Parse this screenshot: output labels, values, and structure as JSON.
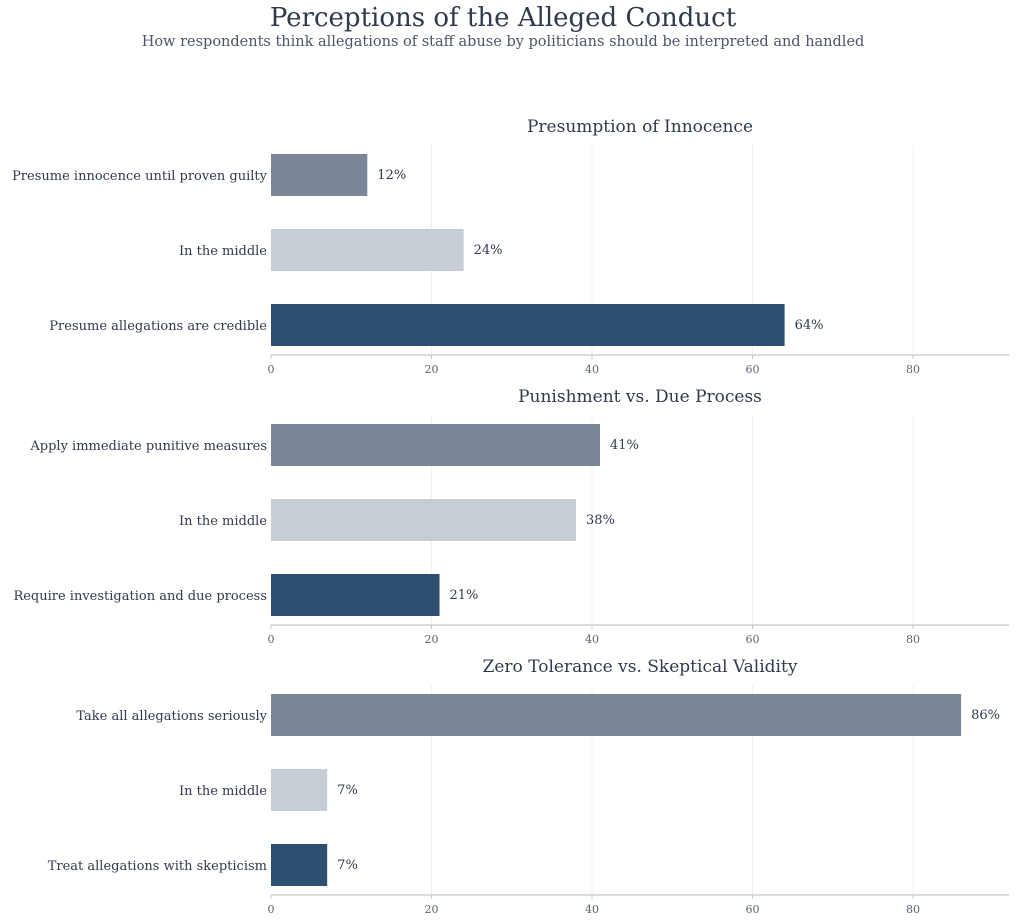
{
  "title": "Perceptions of the Alleged Conduct",
  "subtitle": "How respondents think allegations of staff abuse by politicians should be interpreted and handled",
  "colors": {
    "bar_top": "#7b8798",
    "bar_middle": "#c6cdd5",
    "bar_bottom": "#2e5070",
    "text": "#2f3a4d",
    "tick_text": "#5a6472",
    "axis": "#c4c8d0",
    "grid": "#eef0f3"
  },
  "chart_data": [
    {
      "type": "bar",
      "orientation": "horizontal",
      "title": "Presumption of Innocence",
      "categories": [
        "Presume innocence until proven guilty",
        "In the middle",
        "Presume allegations are credible"
      ],
      "values": [
        12,
        24,
        64
      ],
      "value_labels": [
        "12%",
        "24%",
        "64%"
      ],
      "xlim": [
        0,
        92
      ],
      "xticks": [
        0,
        20,
        40,
        60,
        80
      ],
      "xtick_labels": [
        "0",
        "20",
        "40",
        "60",
        "80"
      ],
      "grid": true
    },
    {
      "type": "bar",
      "orientation": "horizontal",
      "title": "Punishment vs. Due Process",
      "categories": [
        "Apply immediate punitive measures",
        "In the middle",
        "Require investigation and due process"
      ],
      "values": [
        41,
        38,
        21
      ],
      "value_labels": [
        "41%",
        "38%",
        "21%"
      ],
      "xlim": [
        0,
        92
      ],
      "xticks": [
        0,
        20,
        40,
        60,
        80
      ],
      "xtick_labels": [
        "0",
        "20",
        "40",
        "60",
        "80"
      ],
      "grid": true
    },
    {
      "type": "bar",
      "orientation": "horizontal",
      "title": "Zero Tolerance vs. Skeptical Validity",
      "categories": [
        "Take all allegations seriously",
        "In the middle",
        "Treat allegations with skepticism"
      ],
      "values": [
        86,
        7,
        7
      ],
      "value_labels": [
        "86%",
        "7%",
        "7%"
      ],
      "xlim": [
        0,
        92
      ],
      "xticks": [
        0,
        20,
        40,
        60,
        80
      ],
      "xtick_labels": [
        "0",
        "20",
        "40",
        "60",
        "80"
      ],
      "grid": true
    }
  ]
}
